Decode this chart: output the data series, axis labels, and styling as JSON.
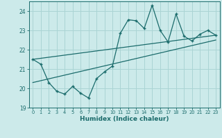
{
  "title": "",
  "xlabel": "Humidex (Indice chaleur)",
  "bg_color": "#cceaea",
  "grid_color": "#aad4d4",
  "line_color": "#1a6b6b",
  "xlim": [
    -0.5,
    23.5
  ],
  "ylim": [
    19,
    24.5
  ],
  "yticks": [
    19,
    20,
    21,
    22,
    23,
    24
  ],
  "xticks": [
    0,
    1,
    2,
    3,
    4,
    5,
    6,
    7,
    8,
    9,
    10,
    11,
    12,
    13,
    14,
    15,
    16,
    17,
    18,
    19,
    20,
    21,
    22,
    23
  ],
  "zigzag_x": [
    0,
    1,
    2,
    3,
    4,
    5,
    6,
    7,
    8,
    9,
    10,
    11,
    12,
    13,
    14,
    15,
    16,
    17,
    18,
    19,
    20,
    21,
    22,
    23
  ],
  "zigzag_y": [
    21.5,
    21.25,
    20.3,
    19.85,
    19.7,
    20.1,
    19.75,
    19.5,
    20.5,
    20.85,
    21.15,
    22.85,
    23.55,
    23.5,
    23.1,
    24.3,
    23.0,
    22.4,
    23.85,
    22.7,
    22.45,
    22.8,
    23.0,
    22.75
  ],
  "trend1_x": [
    0,
    23
  ],
  "trend1_y": [
    21.5,
    22.75
  ],
  "trend2_x": [
    0,
    23
  ],
  "trend2_y": [
    20.3,
    22.5
  ]
}
